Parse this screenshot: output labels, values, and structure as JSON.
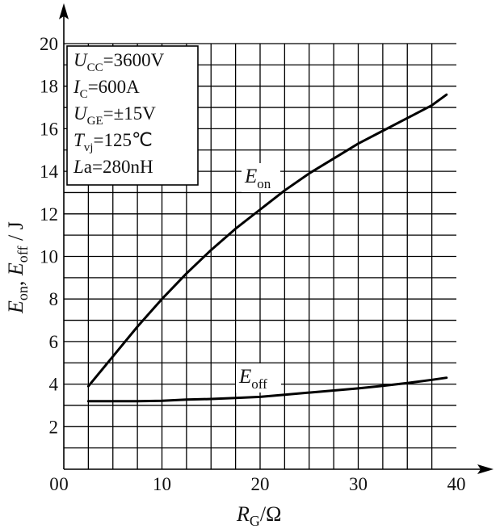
{
  "chart_data": {
    "type": "line",
    "title": "",
    "xlabel": {
      "var": "R",
      "sub": "G",
      "unit": "/Ω"
    },
    "ylabel": {
      "parts": [
        {
          "t": "E",
          "i": true
        },
        {
          "t": "on",
          "sub": true
        },
        {
          "t": ", "
        },
        {
          "t": "E",
          "i": true
        },
        {
          "t": "off",
          "sub": true
        },
        {
          "t": " / J"
        }
      ]
    },
    "xlim": [
      0,
      40
    ],
    "ylim": [
      0,
      20
    ],
    "grid": true,
    "xticks": [
      0,
      10,
      20,
      30,
      40
    ],
    "yticks": [
      2,
      4,
      6,
      8,
      10,
      12,
      14,
      16,
      18,
      20
    ],
    "conditions": [
      {
        "var": "U",
        "sub": "CC",
        "rest": "=3600V"
      },
      {
        "var": "I",
        "sub": "C",
        "rest": "=600A"
      },
      {
        "var": "U",
        "sub": "GE",
        "rest": "=±15V"
      },
      {
        "var": "T",
        "sub": "vj",
        "rest": "=125℃"
      },
      {
        "var": "L",
        "sub": "",
        "rest": "a=280nH"
      }
    ],
    "series": [
      {
        "name": "E_on",
        "label": {
          "var": "E",
          "sub": "on"
        },
        "x": [
          2.5,
          5,
          7.5,
          10,
          12.5,
          15,
          17.5,
          20,
          22.5,
          25,
          27.5,
          30,
          32.5,
          35,
          37.5,
          39
        ],
        "y": [
          3.9,
          5.3,
          6.7,
          8.0,
          9.2,
          10.3,
          11.3,
          12.2,
          13.1,
          13.9,
          14.6,
          15.3,
          15.9,
          16.5,
          17.1,
          17.6
        ]
      },
      {
        "name": "E_off",
        "label": {
          "var": "E",
          "sub": "off"
        },
        "x": [
          2.5,
          5,
          7.5,
          10,
          12.5,
          15,
          17.5,
          20,
          22.5,
          25,
          27.5,
          30,
          32.5,
          35,
          37.5,
          39
        ],
        "y": [
          3.2,
          3.2,
          3.2,
          3.22,
          3.27,
          3.3,
          3.35,
          3.4,
          3.5,
          3.6,
          3.7,
          3.8,
          3.92,
          4.05,
          4.2,
          4.3
        ]
      }
    ]
  }
}
